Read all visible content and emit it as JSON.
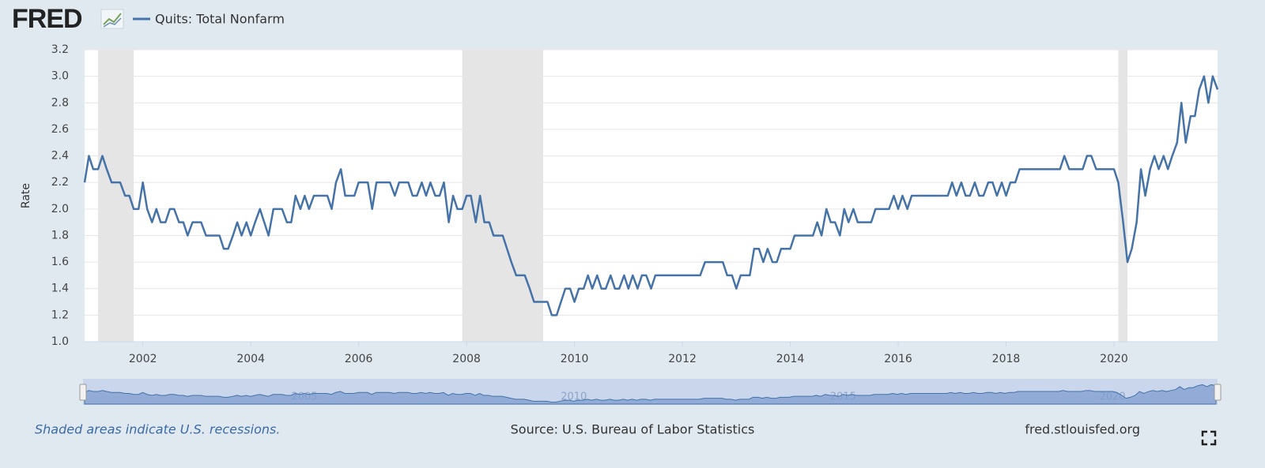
{
  "logo": "FRED",
  "chart_data": {
    "type": "line",
    "y_label": "Rate",
    "recession_note": "Shaded areas indicate U.S. recessions.",
    "source": "Source: U.S. Bureau of Labor Statistics",
    "site": "fred.stlouisfed.org",
    "recessions": [
      [
        2001.17,
        2001.83
      ],
      [
        2007.92,
        2009.42
      ],
      [
        2020.08,
        2020.25
      ]
    ],
    "xlim": [
      2000.92,
      2021.92
    ],
    "xticks": [
      2002,
      2004,
      2006,
      2008,
      2010,
      2012,
      2014,
      2016,
      2018,
      2020
    ],
    "navigator_ticks": [
      2005,
      2010,
      2015,
      2020
    ],
    "ylim": [
      1.0,
      3.2
    ],
    "yticks": [
      {
        "value": 1,
        "label": "1.0"
      },
      1.2,
      1.4,
      1.6,
      1.8,
      {
        "value": 2,
        "label": "2.0"
      },
      2.2,
      2.4,
      2.6,
      2.8,
      {
        "value": 3,
        "label": "3.0"
      },
      3.2
    ],
    "grid": true,
    "x": [
      2000.92,
      2001,
      2001.08,
      2001.17,
      2001.25,
      2001.33,
      2001.42,
      2001.5,
      2001.58,
      2001.67,
      2001.75,
      2001.83,
      2001.92,
      2002,
      2002.08,
      2002.17,
      2002.25,
      2002.33,
      2002.42,
      2002.5,
      2002.58,
      2002.67,
      2002.75,
      2002.83,
      2002.92,
      2003,
      2003.08,
      2003.17,
      2003.25,
      2003.33,
      2003.42,
      2003.5,
      2003.58,
      2003.67,
      2003.75,
      2003.83,
      2003.92,
      2004,
      2004.08,
      2004.17,
      2004.25,
      2004.33,
      2004.42,
      2004.5,
      2004.58,
      2004.67,
      2004.75,
      2004.83,
      2004.92,
      2005,
      2005.08,
      2005.17,
      2005.25,
      2005.33,
      2005.42,
      2005.5,
      2005.58,
      2005.67,
      2005.75,
      2005.83,
      2005.92,
      2006,
      2006.08,
      2006.17,
      2006.25,
      2006.33,
      2006.42,
      2006.5,
      2006.58,
      2006.67,
      2006.75,
      2006.83,
      2006.92,
      2007,
      2007.08,
      2007.17,
      2007.25,
      2007.33,
      2007.42,
      2007.5,
      2007.58,
      2007.67,
      2007.75,
      2007.83,
      2007.92,
      2008,
      2008.08,
      2008.17,
      2008.25,
      2008.33,
      2008.42,
      2008.5,
      2008.58,
      2008.67,
      2008.75,
      2008.83,
      2008.92,
      2009,
      2009.08,
      2009.17,
      2009.25,
      2009.33,
      2009.42,
      2009.5,
      2009.58,
      2009.67,
      2009.75,
      2009.83,
      2009.92,
      2010,
      2010.08,
      2010.17,
      2010.25,
      2010.33,
      2010.42,
      2010.5,
      2010.58,
      2010.67,
      2010.75,
      2010.83,
      2010.92,
      2011,
      2011.08,
      2011.17,
      2011.25,
      2011.33,
      2011.42,
      2011.5,
      2011.58,
      2011.67,
      2011.75,
      2011.83,
      2011.92,
      2012,
      2012.08,
      2012.17,
      2012.25,
      2012.33,
      2012.42,
      2012.5,
      2012.58,
      2012.67,
      2012.75,
      2012.83,
      2012.92,
      2013,
      2013.08,
      2013.17,
      2013.25,
      2013.33,
      2013.42,
      2013.5,
      2013.58,
      2013.67,
      2013.75,
      2013.83,
      2013.92,
      2014,
      2014.08,
      2014.17,
      2014.25,
      2014.33,
      2014.42,
      2014.5,
      2014.58,
      2014.67,
      2014.75,
      2014.83,
      2014.92,
      2015,
      2015.08,
      2015.17,
      2015.25,
      2015.33,
      2015.42,
      2015.5,
      2015.58,
      2015.67,
      2015.75,
      2015.83,
      2015.92,
      2016,
      2016.08,
      2016.17,
      2016.25,
      2016.33,
      2016.42,
      2016.5,
      2016.58,
      2016.67,
      2016.75,
      2016.83,
      2016.92,
      2017,
      2017.08,
      2017.17,
      2017.25,
      2017.33,
      2017.42,
      2017.5,
      2017.58,
      2017.67,
      2017.75,
      2017.83,
      2017.92,
      2018,
      2018.08,
      2018.17,
      2018.25,
      2018.33,
      2018.42,
      2018.5,
      2018.58,
      2018.67,
      2018.75,
      2018.83,
      2018.92,
      2019,
      2019.08,
      2019.17,
      2019.25,
      2019.33,
      2019.42,
      2019.5,
      2019.58,
      2019.67,
      2019.75,
      2019.83,
      2019.92,
      2020,
      2020.08,
      2020.17,
      2020.25,
      2020.33,
      2020.42,
      2020.5,
      2020.58,
      2020.67,
      2020.75,
      2020.83,
      2020.92,
      2021,
      2021.08,
      2021.17,
      2021.25,
      2021.33,
      2021.42,
      2021.5,
      2021.58,
      2021.67,
      2021.75,
      2021.83,
      2021.92
    ],
    "series": [
      {
        "name": "Quits: Total Nonfarm",
        "color": "#4572a7",
        "values": [
          2.2,
          2.4,
          2.3,
          2.3,
          2.4,
          2.3,
          2.2,
          2.2,
          2.2,
          2.1,
          2.1,
          2.0,
          2.0,
          2.2,
          2.0,
          1.9,
          2.0,
          1.9,
          1.9,
          2.0,
          2.0,
          1.9,
          1.9,
          1.8,
          1.9,
          1.9,
          1.9,
          1.8,
          1.8,
          1.8,
          1.8,
          1.7,
          1.7,
          1.8,
          1.9,
          1.8,
          1.9,
          1.8,
          1.9,
          2.0,
          1.9,
          1.8,
          2.0,
          2.0,
          2.0,
          1.9,
          1.9,
          2.1,
          2.0,
          2.1,
          2.0,
          2.1,
          2.1,
          2.1,
          2.1,
          2.0,
          2.2,
          2.3,
          2.1,
          2.1,
          2.1,
          2.2,
          2.2,
          2.2,
          2.0,
          2.2,
          2.2,
          2.2,
          2.2,
          2.1,
          2.2,
          2.2,
          2.2,
          2.1,
          2.1,
          2.2,
          2.1,
          2.2,
          2.1,
          2.1,
          2.2,
          1.9,
          2.1,
          2.0,
          2.0,
          2.1,
          2.1,
          1.9,
          2.1,
          1.9,
          1.9,
          1.8,
          1.8,
          1.8,
          1.7,
          1.6,
          1.5,
          1.5,
          1.5,
          1.4,
          1.3,
          1.3,
          1.3,
          1.3,
          1.2,
          1.2,
          1.3,
          1.4,
          1.4,
          1.3,
          1.4,
          1.4,
          1.5,
          1.4,
          1.5,
          1.4,
          1.4,
          1.5,
          1.4,
          1.4,
          1.5,
          1.4,
          1.5,
          1.4,
          1.5,
          1.5,
          1.4,
          1.5,
          1.5,
          1.5,
          1.5,
          1.5,
          1.5,
          1.5,
          1.5,
          1.5,
          1.5,
          1.5,
          1.6,
          1.6,
          1.6,
          1.6,
          1.6,
          1.5,
          1.5,
          1.4,
          1.5,
          1.5,
          1.5,
          1.7,
          1.7,
          1.6,
          1.7,
          1.6,
          1.6,
          1.7,
          1.7,
          1.7,
          1.8,
          1.8,
          1.8,
          1.8,
          1.8,
          1.9,
          1.8,
          2.0,
          1.9,
          1.9,
          1.8,
          2.0,
          1.9,
          2.0,
          1.9,
          1.9,
          1.9,
          1.9,
          2.0,
          2.0,
          2.0,
          2.0,
          2.1,
          2.0,
          2.1,
          2.0,
          2.1,
          2.1,
          2.1,
          2.1,
          2.1,
          2.1,
          2.1,
          2.1,
          2.1,
          2.2,
          2.1,
          2.2,
          2.1,
          2.1,
          2.2,
          2.1,
          2.1,
          2.2,
          2.2,
          2.1,
          2.2,
          2.1,
          2.2,
          2.2,
          2.3,
          2.3,
          2.3,
          2.3,
          2.3,
          2.3,
          2.3,
          2.3,
          2.3,
          2.3,
          2.4,
          2.3,
          2.3,
          2.3,
          2.3,
          2.4,
          2.4,
          2.3,
          2.3,
          2.3,
          2.3,
          2.3,
          2.2,
          1.9,
          1.6,
          1.7,
          1.9,
          2.3,
          2.1,
          2.3,
          2.4,
          2.3,
          2.4,
          2.3,
          2.4,
          2.5,
          2.8,
          2.5,
          2.7,
          2.7,
          2.9,
          3.0,
          2.8,
          3.0,
          2.9
        ]
      }
    ]
  }
}
